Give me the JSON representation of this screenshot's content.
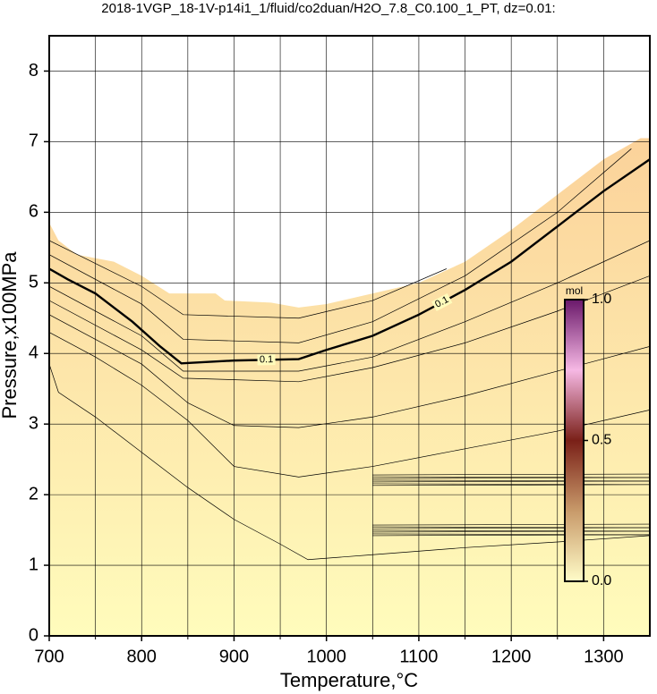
{
  "chart_data": {
    "type": "contour",
    "title": "2018-1VGP_18-1V-p14i1_1/fluid/co2duan/H2O_7.8_C0.100_1_PT, dz=0.01:",
    "x_label": "Temperature,°C",
    "y_label": "Pressure,x100MPa",
    "xlim": [
      700,
      1350
    ],
    "ylim": [
      0,
      8.5
    ],
    "xticks": [
      700,
      800,
      900,
      1000,
      1100,
      1200,
      1300
    ],
    "yticks": [
      0,
      1,
      2,
      3,
      4,
      5,
      6,
      7,
      8
    ],
    "minor_xticks": [
      750,
      850,
      950,
      1050,
      1150,
      1250
    ],
    "grid": true,
    "fill": {
      "x": [
        700,
        710,
        730,
        770,
        800,
        830,
        880,
        890,
        940,
        970,
        1000,
        1050,
        1100,
        1150,
        1200,
        1250,
        1300,
        1340,
        1350
      ],
      "y": [
        5.85,
        5.6,
        5.4,
        5.3,
        5.1,
        4.85,
        4.85,
        4.75,
        4.72,
        4.65,
        4.7,
        4.85,
        5.0,
        5.3,
        5.75,
        6.25,
        6.75,
        7.05,
        7.05
      ],
      "color_top": "#fbd29a",
      "color_bottom": "#fffcbc"
    },
    "contours": [
      {
        "x": [
          700,
          710,
          750,
          800,
          850,
          900,
          950,
          980,
          1050,
          1150,
          1250,
          1350
        ],
        "y": [
          3.85,
          3.45,
          3.1,
          2.6,
          2.1,
          1.65,
          1.3,
          1.08,
          1.15,
          1.25,
          1.33,
          1.42
        ]
      },
      {
        "x": [
          700,
          750,
          800,
          850,
          900,
          970,
          1050,
          1150,
          1250,
          1350
        ],
        "y": [
          4.3,
          3.95,
          3.55,
          3.05,
          2.4,
          2.25,
          2.4,
          2.65,
          2.9,
          3.2
        ]
      },
      {
        "x": [
          700,
          800,
          850,
          900,
          970,
          1050,
          1150,
          1250,
          1350
        ],
        "y": [
          4.55,
          3.85,
          3.3,
          2.98,
          2.95,
          3.1,
          3.4,
          3.75,
          4.1
        ]
      },
      {
        "x": [
          700,
          800,
          845,
          970,
          1050,
          1150,
          1250,
          1350
        ],
        "y": [
          4.75,
          4.05,
          3.65,
          3.6,
          3.8,
          4.15,
          4.6,
          5.1
        ]
      },
      {
        "x": [
          700,
          800,
          845,
          970,
          1050,
          1150,
          1250,
          1350
        ],
        "y": [
          4.95,
          4.25,
          3.75,
          3.75,
          3.95,
          4.45,
          5.0,
          5.6
        ]
      },
      {
        "label": "0.1",
        "x": [
          700,
          720,
          750,
          790,
          820,
          843,
          900,
          970,
          1000,
          1050,
          1100,
          1150,
          1200,
          1250,
          1300,
          1350
        ],
        "y": [
          5.2,
          5.05,
          4.85,
          4.45,
          4.1,
          3.86,
          3.9,
          3.92,
          4.05,
          4.25,
          4.55,
          4.9,
          5.3,
          5.8,
          6.3,
          6.75
        ]
      },
      {
        "x": [
          700,
          800,
          845,
          970,
          1050,
          1150,
          1250,
          1330
        ],
        "y": [
          5.4,
          4.7,
          4.2,
          4.15,
          4.45,
          5.1,
          6.0,
          6.9
        ]
      },
      {
        "x": [
          700,
          800,
          845,
          970,
          1050,
          1130
        ],
        "y": [
          5.6,
          4.95,
          4.55,
          4.5,
          4.75,
          5.2
        ]
      }
    ],
    "bands": [
      {
        "x": [
          1050,
          1350
        ],
        "y": [
          2.13,
          2.28
        ]
      },
      {
        "x": [
          1050,
          1350
        ],
        "y": [
          1.42,
          1.57
        ]
      }
    ],
    "colorbar": {
      "label": "mol",
      "lim": [
        0,
        1
      ],
      "ticks": [
        {
          "value": 0,
          "label": "0.0"
        },
        {
          "value": 0.5,
          "label": "0.5"
        },
        {
          "value": 1,
          "label": "1.0"
        }
      ],
      "colors": [
        "#fffcc8",
        "#c89a6a",
        "#7a2018",
        "#f6b8e4",
        "#6a186a"
      ]
    }
  }
}
